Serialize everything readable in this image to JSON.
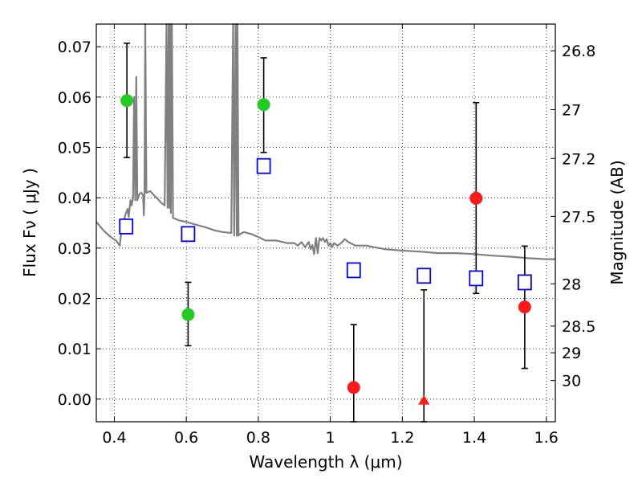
{
  "chart_data": {
    "type": "scatter",
    "title": "",
    "xlabel": "Wavelength  λ (μm)",
    "ylabel": "Flux  Fν  ( μJy )",
    "ylabel_right": "Magnitude (AB)",
    "xlim": [
      0.35,
      1.625
    ],
    "ylim": [
      -0.0045,
      0.0745
    ],
    "grid": true,
    "grid_style": "dotted",
    "x_ticks": [
      0.4,
      0.6,
      0.8,
      1.0,
      1.2,
      1.4,
      1.6
    ],
    "x_tick_labels": [
      "0.4",
      "0.6",
      "0.8",
      "1",
      "1.2",
      "1.4",
      "1.6"
    ],
    "y_ticks": [
      0.0,
      0.01,
      0.02,
      0.03,
      0.04,
      0.05,
      0.06,
      0.07
    ],
    "y_tick_labels": [
      "0.00",
      "0.01",
      "0.02",
      "0.03",
      "0.04",
      "0.05",
      "0.06",
      "0.07"
    ],
    "right_ticks": [
      {
        "flux": 0.0692,
        "label": "26.8"
      },
      {
        "flux": 0.0575,
        "label": "27"
      },
      {
        "flux": 0.0478,
        "label": "27.2"
      },
      {
        "flux": 0.0363,
        "label": "27.5"
      },
      {
        "flux": 0.0229,
        "label": "28"
      },
      {
        "flux": 0.0145,
        "label": "28.5"
      },
      {
        "flux": 0.0092,
        "label": "29"
      },
      {
        "flux": 0.0037,
        "label": "30"
      }
    ],
    "series": [
      {
        "kind": "line",
        "color": "#808080",
        "points": [
          [
            0.35,
            0.0352
          ],
          [
            0.37,
            0.0335
          ],
          [
            0.39,
            0.0322
          ],
          [
            0.405,
            0.0315
          ],
          [
            0.41,
            0.031
          ],
          [
            0.415,
            0.0305
          ],
          [
            0.42,
            0.0335
          ],
          [
            0.425,
            0.0345
          ],
          [
            0.43,
            0.0365
          ],
          [
            0.437,
            0.0378
          ],
          [
            0.44,
            0.0362
          ],
          [
            0.445,
            0.0395
          ],
          [
            0.448,
            0.0385
          ],
          [
            0.452,
            0.04
          ],
          [
            0.455,
            0.06
          ],
          [
            0.458,
            0.0395
          ],
          [
            0.461,
            0.064
          ],
          [
            0.464,
            0.0395
          ],
          [
            0.47,
            0.0408
          ],
          [
            0.475,
            0.041
          ],
          [
            0.48,
            0.0405
          ],
          [
            0.482,
            0.0365
          ],
          [
            0.484,
            0.041
          ],
          [
            0.486,
            0.0745
          ],
          [
            0.489,
            0.041
          ],
          [
            0.495,
            0.0412
          ],
          [
            0.5,
            0.0413
          ],
          [
            0.51,
            0.0405
          ],
          [
            0.52,
            0.0398
          ],
          [
            0.53,
            0.039
          ],
          [
            0.54,
            0.0385
          ],
          [
            0.545,
            0.0745
          ],
          [
            0.548,
            0.038
          ],
          [
            0.551,
            0.0745
          ],
          [
            0.553,
            0.038
          ],
          [
            0.555,
            0.0745
          ],
          [
            0.557,
            0.037
          ],
          [
            0.56,
            0.0745
          ],
          [
            0.563,
            0.036
          ],
          [
            0.57,
            0.0358
          ],
          [
            0.58,
            0.0355
          ],
          [
            0.6,
            0.0352
          ],
          [
            0.62,
            0.0348
          ],
          [
            0.65,
            0.0342
          ],
          [
            0.68,
            0.0335
          ],
          [
            0.7,
            0.0332
          ],
          [
            0.725,
            0.033
          ],
          [
            0.73,
            0.0745
          ],
          [
            0.733,
            0.0325
          ],
          [
            0.737,
            0.0745
          ],
          [
            0.74,
            0.0325
          ],
          [
            0.742,
            0.0745
          ],
          [
            0.745,
            0.0325
          ],
          [
            0.75,
            0.0328
          ],
          [
            0.76,
            0.0332
          ],
          [
            0.78,
            0.0328
          ],
          [
            0.8,
            0.0322
          ],
          [
            0.82,
            0.0315
          ],
          [
            0.85,
            0.0315
          ],
          [
            0.88,
            0.031
          ],
          [
            0.9,
            0.031
          ],
          [
            0.91,
            0.0305
          ],
          [
            0.92,
            0.0312
          ],
          [
            0.93,
            0.0302
          ],
          [
            0.94,
            0.0312
          ],
          [
            0.945,
            0.0298
          ],
          [
            0.95,
            0.0306
          ],
          [
            0.955,
            0.0288
          ],
          [
            0.96,
            0.032
          ],
          [
            0.965,
            0.029
          ],
          [
            0.97,
            0.032
          ],
          [
            0.975,
            0.0315
          ],
          [
            0.98,
            0.032
          ],
          [
            0.985,
            0.0312
          ],
          [
            0.99,
            0.0318
          ],
          [
            0.995,
            0.0305
          ],
          [
            1.0,
            0.031
          ],
          [
            1.005,
            0.0302
          ],
          [
            1.01,
            0.031
          ],
          [
            1.02,
            0.0305
          ],
          [
            1.03,
            0.031
          ],
          [
            1.04,
            0.0318
          ],
          [
            1.05,
            0.0312
          ],
          [
            1.07,
            0.0305
          ],
          [
            1.1,
            0.0305
          ],
          [
            1.12,
            0.0302
          ],
          [
            1.15,
            0.0298
          ],
          [
            1.2,
            0.0295
          ],
          [
            1.25,
            0.0293
          ],
          [
            1.3,
            0.029
          ],
          [
            1.35,
            0.029
          ],
          [
            1.4,
            0.0288
          ],
          [
            1.45,
            0.0285
          ],
          [
            1.5,
            0.0283
          ],
          [
            1.55,
            0.028
          ],
          [
            1.6,
            0.0278
          ],
          [
            1.625,
            0.0278
          ]
        ]
      },
      {
        "kind": "markers",
        "marker": "square-open",
        "color": "#0000ff",
        "points": [
          [
            0.433,
            0.0343
          ],
          [
            0.605,
            0.0328
          ],
          [
            0.815,
            0.0463
          ],
          [
            1.065,
            0.0256
          ],
          [
            1.26,
            0.0245
          ],
          [
            1.405,
            0.024
          ],
          [
            1.54,
            0.0232
          ]
        ]
      },
      {
        "kind": "markers",
        "marker": "circle",
        "color": "#22cc22",
        "points": [
          {
            "x": 0.435,
            "y": 0.0593,
            "err_lo": 0.048,
            "err_hi": 0.0707
          },
          {
            "x": 0.605,
            "y": 0.0168,
            "err_lo": 0.0106,
            "err_hi": 0.0232
          },
          {
            "x": 0.815,
            "y": 0.0585,
            "err_lo": 0.049,
            "err_hi": 0.0678
          }
        ]
      },
      {
        "kind": "markers",
        "marker": "circle",
        "color": "#ff1a1a",
        "points": [
          {
            "x": 1.065,
            "y": 0.0023,
            "err_lo": -0.0045,
            "err_hi": 0.0148
          },
          {
            "x": 1.405,
            "y": 0.0399,
            "err_lo": 0.021,
            "err_hi": 0.0589
          },
          {
            "x": 1.54,
            "y": 0.0183,
            "err_lo": 0.0061,
            "err_hi": 0.0304
          }
        ]
      },
      {
        "kind": "markers",
        "marker": "triangle",
        "color": "#ff1a1a",
        "points": [
          {
            "x": 1.26,
            "y": -0.0003,
            "err_lo": -0.0045,
            "err_hi": 0.0217
          }
        ]
      }
    ]
  }
}
